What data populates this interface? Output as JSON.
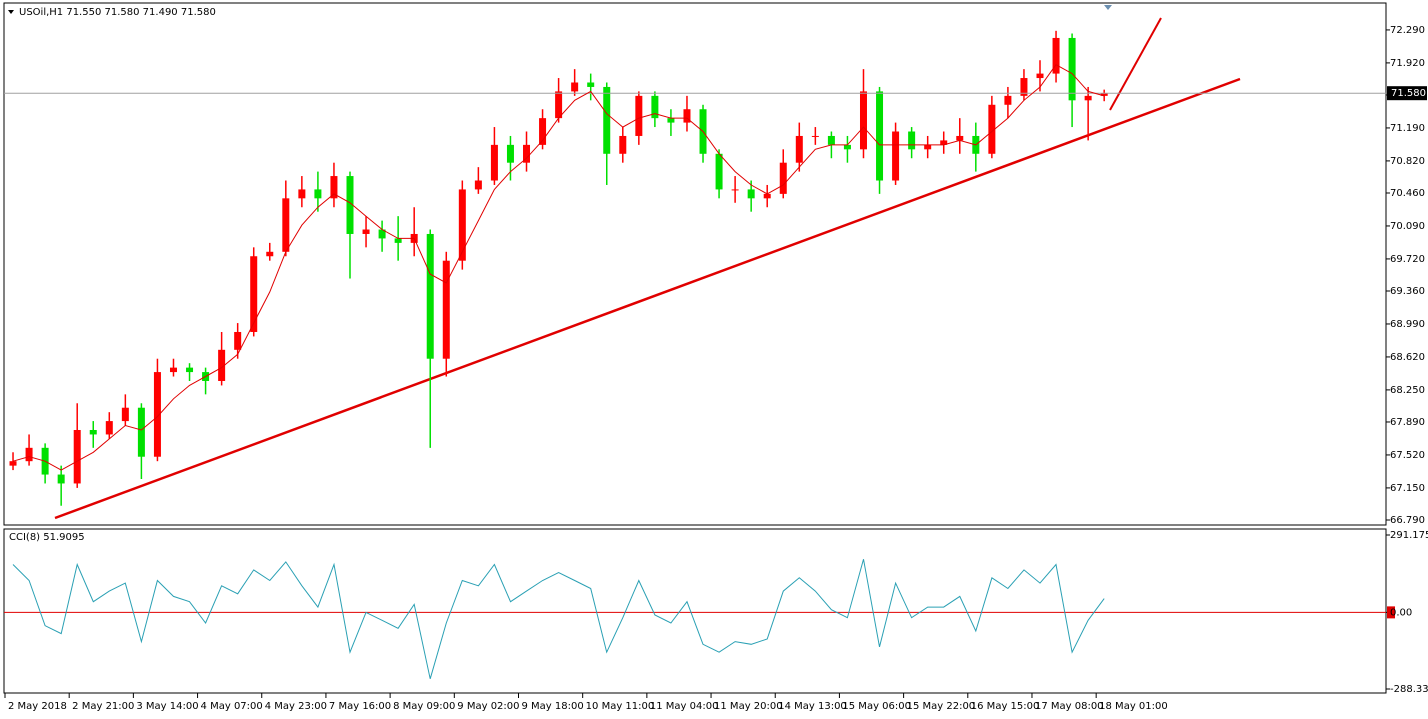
{
  "chart_data": [
    {
      "type": "candlestick",
      "title": "USOil,H1  71.550 71.580 71.490 71.580",
      "categories": [
        "2 May 2018",
        null,
        null,
        null,
        "2 May 21:00",
        null,
        null,
        null,
        "3 May 14:00",
        null,
        null,
        null,
        "4 May 07:00",
        null,
        null,
        null,
        "4 May 23:00",
        null,
        null,
        null,
        "7 May 16:00",
        null,
        null,
        null,
        "8 May 09:00",
        null,
        null,
        null,
        "9 May 02:00",
        null,
        null,
        null,
        "9 May 18:00",
        null,
        null,
        null,
        "10 May 11:00",
        null,
        null,
        null,
        "11 May 04:00",
        null,
        null,
        null,
        "11 May 20:00",
        null,
        null,
        null,
        "14 May 13:00",
        null,
        null,
        null,
        "15 May 06:00",
        null,
        null,
        null,
        "15 May 22:00",
        null,
        null,
        null,
        "16 May 15:00",
        null,
        null,
        null,
        "17 May 08:00",
        null,
        null,
        null,
        "18 May 01:00"
      ],
      "open": [
        67.4,
        67.45,
        67.6,
        67.3,
        67.2,
        67.8,
        67.75,
        67.9,
        68.05,
        67.5,
        68.45,
        68.5,
        68.45,
        68.35,
        68.7,
        68.9,
        69.75,
        69.8,
        70.4,
        70.5,
        70.4,
        70.65,
        70.0,
        70.05,
        69.95,
        69.9,
        70.0,
        68.6,
        69.7,
        70.5,
        70.6,
        71.0,
        70.8,
        71.0,
        71.3,
        71.6,
        71.7,
        71.65,
        70.9,
        71.1,
        71.55,
        71.3,
        71.25,
        71.4,
        70.9,
        70.5,
        70.5,
        70.4,
        70.45,
        70.8,
        71.1,
        71.1,
        71.0,
        70.95,
        71.6,
        70.6,
        71.15,
        70.95,
        71.0,
        71.05,
        71.1,
        70.9,
        71.45,
        71.55,
        71.75,
        71.8,
        72.2,
        71.5,
        71.55
      ],
      "high": [
        67.55,
        67.75,
        67.65,
        67.4,
        68.1,
        67.9,
        68.0,
        68.2,
        68.1,
        68.6,
        68.6,
        68.55,
        68.5,
        68.9,
        69.0,
        69.85,
        69.9,
        70.6,
        70.65,
        70.7,
        70.8,
        70.7,
        70.2,
        70.15,
        70.2,
        70.3,
        70.05,
        69.8,
        70.6,
        70.75,
        71.2,
        71.1,
        71.15,
        71.4,
        71.75,
        71.85,
        71.8,
        71.7,
        71.2,
        71.6,
        71.6,
        71.4,
        71.55,
        71.45,
        70.95,
        70.65,
        70.6,
        70.55,
        70.95,
        71.25,
        71.2,
        71.15,
        71.1,
        71.85,
        71.65,
        71.25,
        71.2,
        71.1,
        71.15,
        71.3,
        71.25,
        71.55,
        71.65,
        71.85,
        71.95,
        72.28,
        72.25,
        71.65,
        71.62
      ],
      "low": [
        67.35,
        67.4,
        67.2,
        66.95,
        67.15,
        67.6,
        67.7,
        67.85,
        67.25,
        67.45,
        68.4,
        68.35,
        68.2,
        68.3,
        68.6,
        68.85,
        69.7,
        69.75,
        70.3,
        70.25,
        70.3,
        69.5,
        69.85,
        69.8,
        69.7,
        69.75,
        67.6,
        68.4,
        69.6,
        70.45,
        70.55,
        70.6,
        70.7,
        70.95,
        71.25,
        71.55,
        71.5,
        70.55,
        70.8,
        71.0,
        71.2,
        71.1,
        71.15,
        70.8,
        70.4,
        70.35,
        70.25,
        70.3,
        70.4,
        70.7,
        71.0,
        70.85,
        70.8,
        70.85,
        70.45,
        70.55,
        70.85,
        70.85,
        70.9,
        70.9,
        70.7,
        70.85,
        71.3,
        71.5,
        71.6,
        71.7,
        71.2,
        71.05,
        71.49
      ],
      "close": [
        67.45,
        67.6,
        67.3,
        67.2,
        67.8,
        67.75,
        67.9,
        68.05,
        67.5,
        68.45,
        68.5,
        68.45,
        68.35,
        68.7,
        68.9,
        69.75,
        69.8,
        70.4,
        70.5,
        70.4,
        70.65,
        70.0,
        70.05,
        69.95,
        69.9,
        70.0,
        68.6,
        69.7,
        70.5,
        70.6,
        71.0,
        70.8,
        71.0,
        71.3,
        71.6,
        71.7,
        71.65,
        70.9,
        71.1,
        71.55,
        71.3,
        71.25,
        71.4,
        70.9,
        70.5,
        70.5,
        70.4,
        70.45,
        70.8,
        71.1,
        71.1,
        71.0,
        70.95,
        71.6,
        70.6,
        71.15,
        70.95,
        71.0,
        71.05,
        71.1,
        70.9,
        71.45,
        71.55,
        71.75,
        71.8,
        72.2,
        71.5,
        71.55,
        71.58
      ],
      "up_color": "#ff0000",
      "down_color": "#00e000",
      "series": [
        {
          "color": "#e00000",
          "values": [
            67.45,
            67.5,
            67.45,
            67.35,
            67.45,
            67.55,
            67.7,
            67.85,
            67.8,
            67.95,
            68.15,
            68.3,
            68.4,
            68.5,
            68.65,
            69.0,
            69.35,
            69.8,
            70.1,
            70.3,
            70.45,
            70.35,
            70.2,
            70.05,
            69.95,
            69.95,
            69.55,
            69.45,
            69.8,
            70.15,
            70.5,
            70.7,
            70.85,
            71.05,
            71.3,
            71.5,
            71.6,
            71.35,
            71.2,
            71.3,
            71.35,
            71.3,
            71.3,
            71.15,
            70.9,
            70.7,
            70.55,
            70.45,
            70.55,
            70.75,
            70.95,
            71.0,
            71.0,
            71.2,
            71.0,
            71.0,
            71.0,
            71.0,
            71.0,
            71.05,
            71.0,
            71.15,
            71.3,
            71.5,
            71.65,
            71.9,
            71.8,
            71.6,
            71.55
          ]
        }
      ],
      "last": {
        "value": 71.58,
        "label": "71.580"
      },
      "ylim": [
        66.745,
        72.581
      ],
      "yticks": [
        {
          "value": 72.29,
          "label": "72.290"
        },
        {
          "value": 71.92,
          "label": "71.920"
        },
        {
          "value": 71.56,
          "label": "71.560"
        },
        {
          "value": 71.19,
          "label": "71.190"
        },
        {
          "value": 70.82,
          "label": "70.820"
        },
        {
          "value": 70.46,
          "label": "70.460"
        },
        {
          "value": 70.09,
          "label": "70.090"
        },
        {
          "value": 69.72,
          "label": "69.720"
        },
        {
          "value": 69.36,
          "label": "69.360"
        },
        {
          "value": 68.99,
          "label": "68.990"
        },
        {
          "value": 68.62,
          "label": "68.620"
        },
        {
          "value": 68.25,
          "label": "68.250"
        },
        {
          "value": 67.89,
          "label": "67.890"
        },
        {
          "value": 67.52,
          "label": "67.520"
        },
        {
          "value": 67.15,
          "label": "67.150"
        },
        {
          "value": 66.79,
          "label": "66.790"
        }
      ]
    },
    {
      "type": "line",
      "title": "CCI(8) 51.9095",
      "series": [
        {
          "color": "#2aa0b4",
          "values": [
            180,
            120,
            -50,
            -80,
            180,
            40,
            80,
            110,
            -110,
            120,
            60,
            40,
            -40,
            100,
            70,
            160,
            120,
            190,
            100,
            20,
            180,
            -150,
            0,
            -30,
            -60,
            30,
            -250,
            -40,
            120,
            100,
            180,
            40,
            80,
            120,
            150,
            120,
            90,
            -150,
            -20,
            120,
            -10,
            -40,
            40,
            -120,
            -150,
            -110,
            -120,
            -100,
            80,
            130,
            80,
            10,
            -20,
            200,
            -130,
            110,
            -20,
            20,
            20,
            60,
            -70,
            130,
            90,
            160,
            110,
            180,
            -150,
            -30,
            51.9095
          ]
        }
      ],
      "level_color": "#e00000",
      "ylim": [
        -288.3394,
        291.1755
      ],
      "yticks": [
        291.1755,
        {
          "value": 0,
          "label": "0.00"
        },
        -288.3394
      ]
    }
  ]
}
